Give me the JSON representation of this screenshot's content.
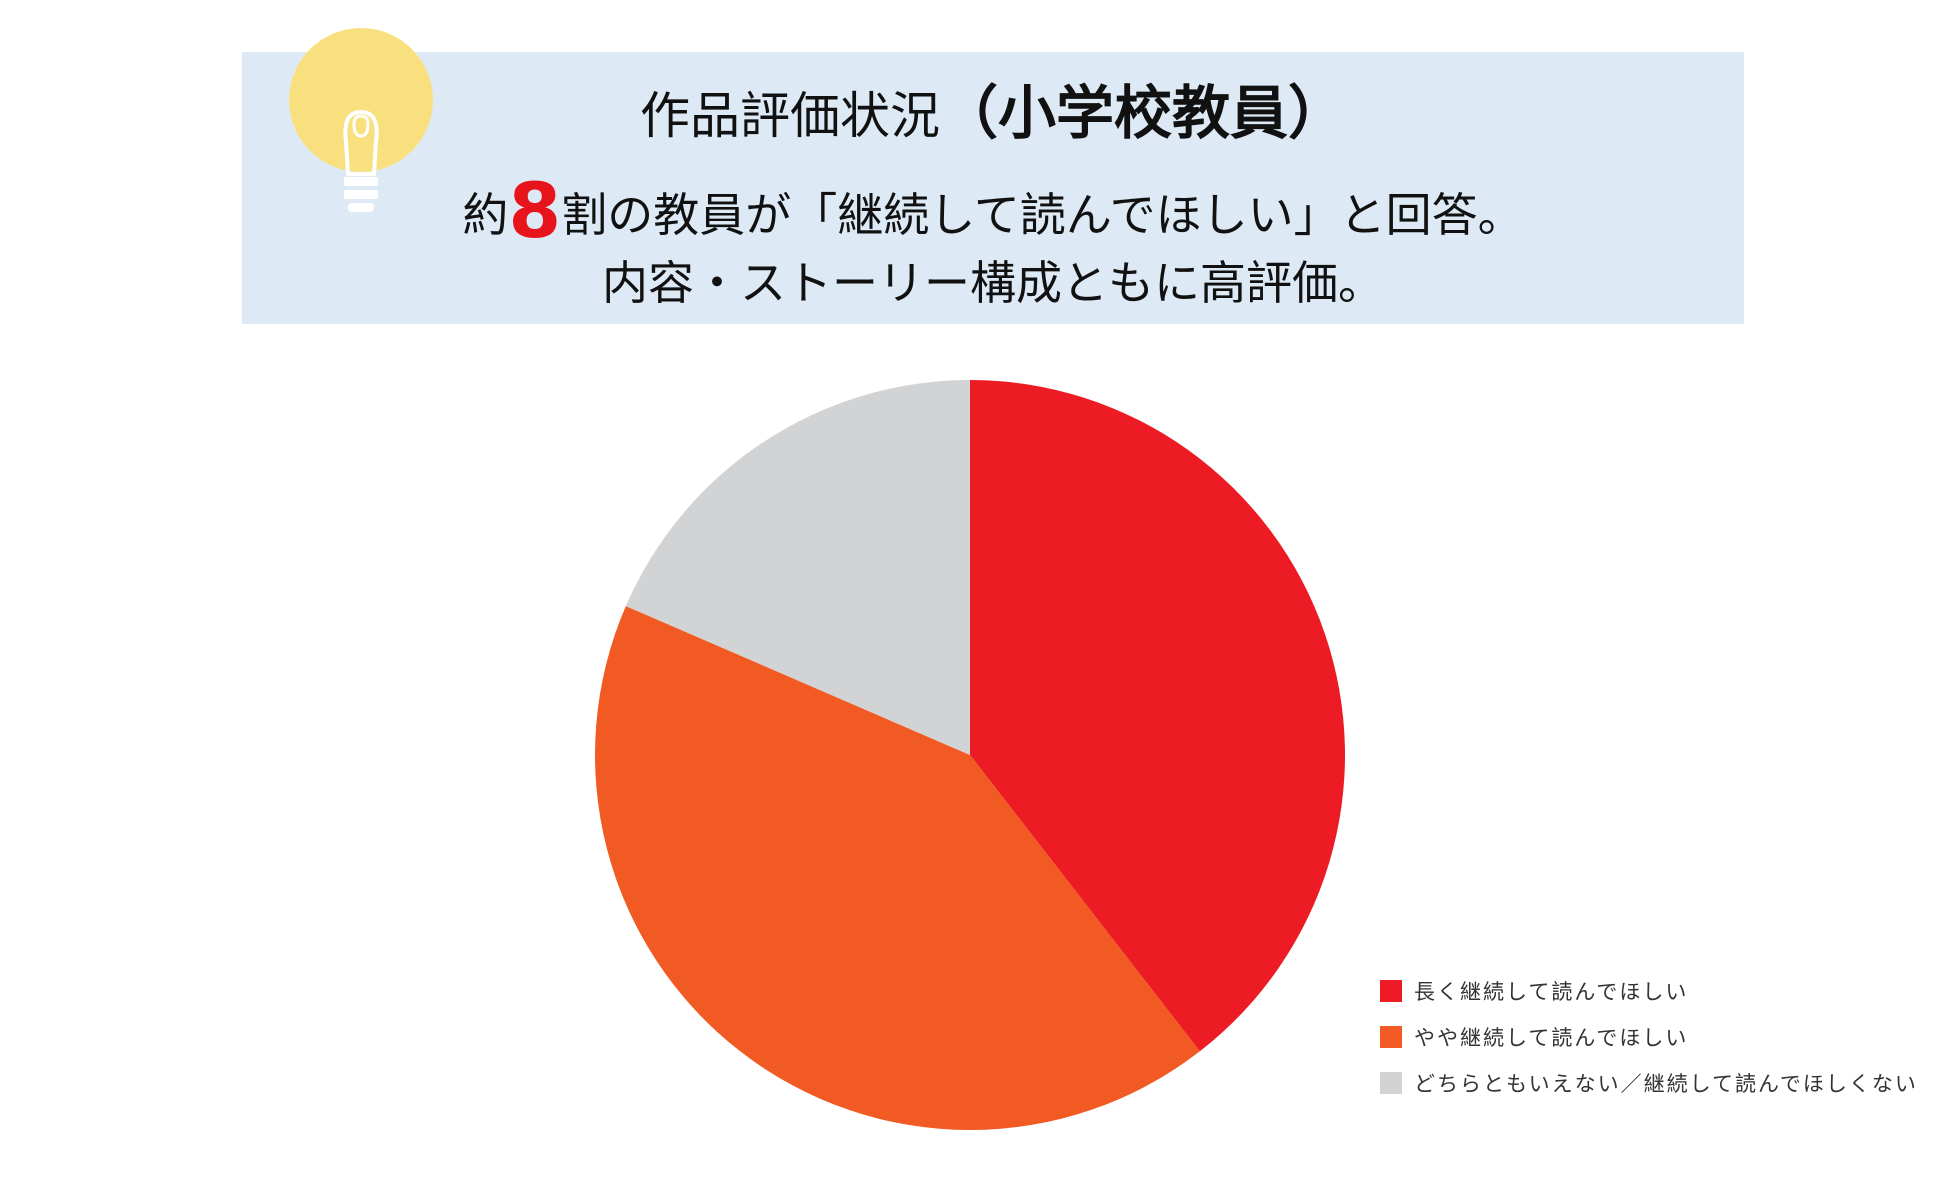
{
  "header": {
    "title_prefix": "作品評価状況",
    "title_strong": "（小学校教員）",
    "line1_before": "約",
    "line1_big": "8",
    "line1_after": "割の教員が「継続して読んでほしい」と回答。",
    "line2": "内容・ストーリー構成ともに高評価。",
    "icon": "lightbulb-icon",
    "box_color": "#ddeaf6",
    "highlight_color": "#e8141c"
  },
  "chart_data": {
    "type": "pie",
    "title": "",
    "legend_position": "bottom-right",
    "slices": [
      {
        "label": "長く継続して読んでほしい",
        "value": 39.5,
        "color": "#ed1c24"
      },
      {
        "label": "やや継続して読んでほしい",
        "value": 42.0,
        "color": "#f15a22"
      },
      {
        "label": "どちらともいえない／継続して読んでほしくない",
        "value": 18.5,
        "color": "#d1d3d4"
      }
    ]
  }
}
